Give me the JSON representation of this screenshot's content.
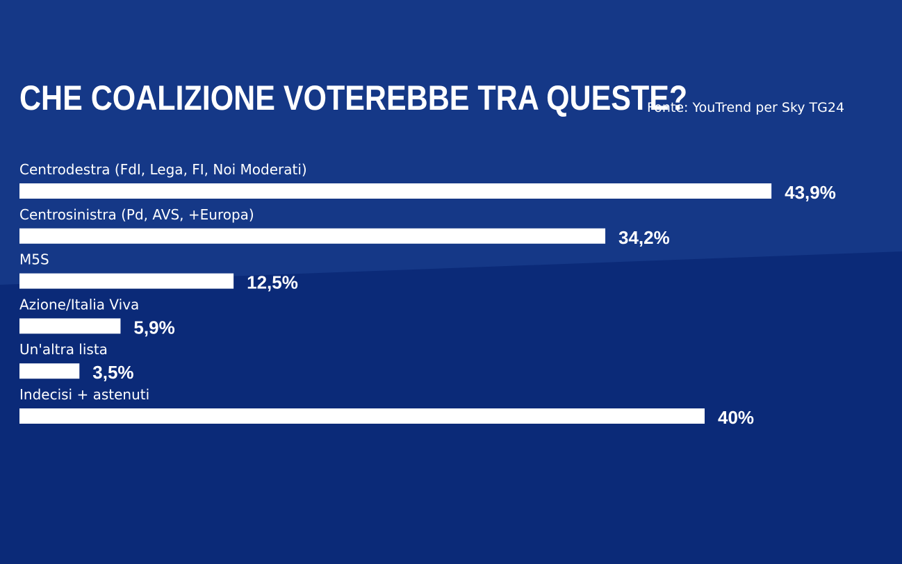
{
  "header": {
    "title": "CHE COALIZIONE VOTEREBBE TRA QUESTE?",
    "source": "Fonte: YouTrend per Sky TG24"
  },
  "colors": {
    "background": "#0b2a78",
    "background_upper": "#153887",
    "bar": "#ffffff",
    "text": "#ffffff"
  },
  "chart_data": {
    "type": "bar",
    "orientation": "horizontal",
    "title": "CHE COALIZIONE VOTEREBBE TRA QUESTE?",
    "categories": [
      "Centrodestra (FdI, Lega, FI, Noi Moderati)",
      "Centrosinistra (Pd, AVS, +Europa)",
      "M5S",
      "Azione/Italia Viva",
      "Un'altra lista",
      "Indecisi + astenuti"
    ],
    "values": [
      43.9,
      34.2,
      12.5,
      5.9,
      3.5,
      40
    ],
    "value_labels": [
      "43,9%",
      "34,2%",
      "12,5%",
      "5,9%",
      "3,5%",
      "40%"
    ],
    "xlabel": "",
    "ylabel": "",
    "grid": false,
    "legend": "none"
  }
}
